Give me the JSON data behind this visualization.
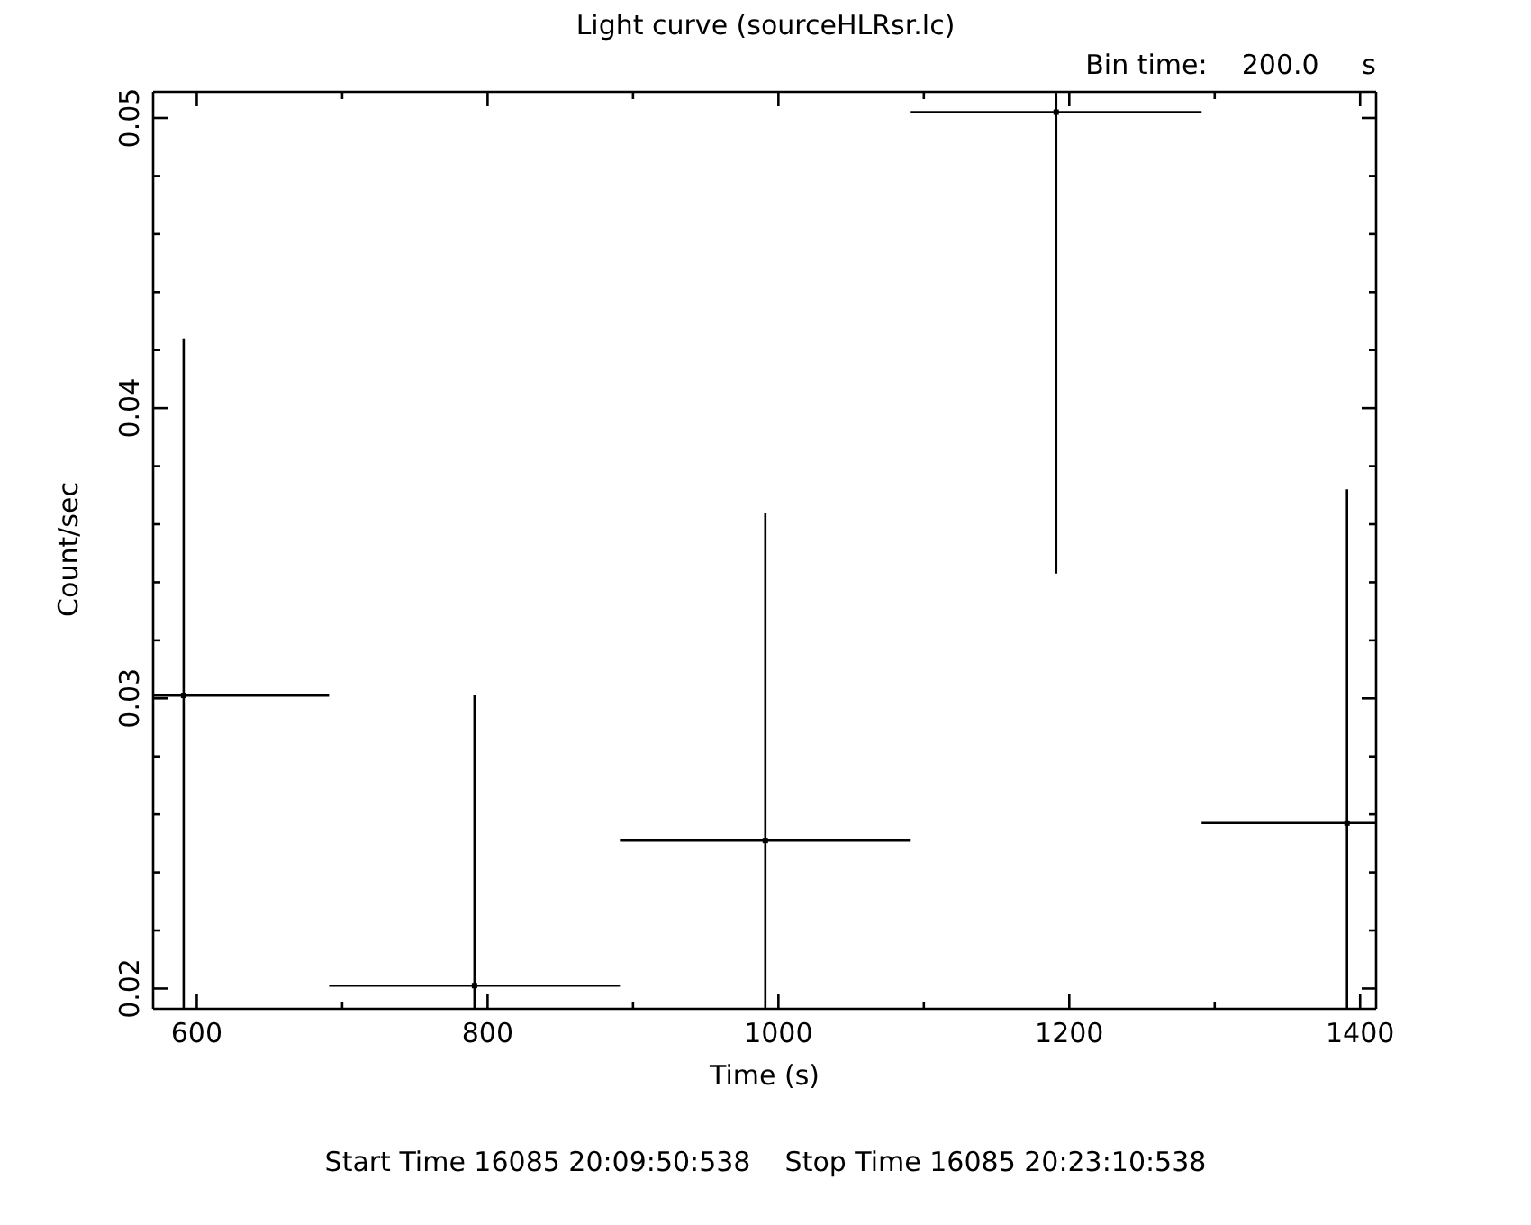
{
  "chart_data": {
    "type": "scatter",
    "title": "Light curve (sourceHLRsr.lc)",
    "xlabel": "Time (s)",
    "ylabel": "Count/sec",
    "annotations": [
      "Bin time:    200.0     s",
      "Start Time 16085 20:09:50:538    Stop Time 16085 20:23:10:538"
    ],
    "x": [
      591,
      791,
      991,
      1191,
      1391
    ],
    "series": [
      {
        "color": "#000000",
        "values": [
          0.0301,
          0.0201,
          0.0251,
          0.0502,
          0.0257
        ],
        "errors": [
          [
            0.0193,
            0.0424
          ],
          [
            0.0193,
            0.0301
          ],
          [
            0.0193,
            0.0364
          ],
          [
            0.0343,
            0.0509
          ],
          [
            0.0193,
            0.0372
          ]
        ],
        "xerrors": [
          [
            570,
            691
          ],
          [
            691,
            891
          ],
          [
            891,
            1091
          ],
          [
            1091,
            1291
          ],
          [
            1291,
            1411
          ]
        ]
      }
    ],
    "xlim": [
      570,
      1411
    ],
    "xticks": [
      600,
      {
        "value": 700,
        "label": null
      },
      800,
      {
        "value": 900,
        "label": null
      },
      1000,
      {
        "value": 1100,
        "label": null
      },
      1200,
      {
        "value": 1300,
        "label": null
      },
      1400
    ],
    "ylim": [
      0.0193,
      0.0509
    ],
    "yticks": [
      0.02,
      {
        "value": 0.022,
        "label": null
      },
      {
        "value": 0.024,
        "label": null
      },
      {
        "value": 0.026,
        "label": null
      },
      {
        "value": 0.028,
        "label": null
      },
      0.03,
      {
        "value": 0.032,
        "label": null
      },
      {
        "value": 0.034,
        "label": null
      },
      {
        "value": 0.036,
        "label": null
      },
      {
        "value": 0.038,
        "label": null
      },
      0.04,
      {
        "value": 0.042,
        "label": null
      },
      {
        "value": 0.044,
        "label": null
      },
      {
        "value": 0.046,
        "label": null
      },
      {
        "value": 0.048,
        "label": null
      },
      0.05
    ]
  }
}
